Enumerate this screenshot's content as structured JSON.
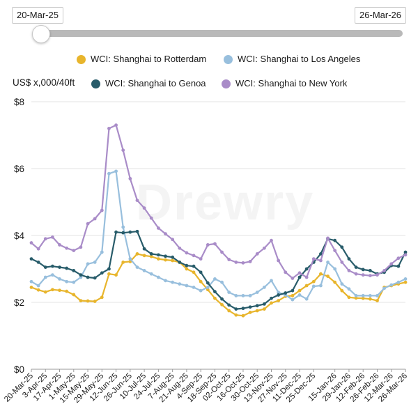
{
  "range_slider": {
    "start_label": "20-Mar-25",
    "end_label": "26-Mar-26"
  },
  "watermark": "Drewry",
  "chart_data": {
    "type": "line",
    "ylabel": "US$ x,000/40ft",
    "ylim": [
      0,
      8
    ],
    "yticks": [
      0,
      2,
      4,
      6,
      8
    ],
    "ytick_labels": [
      "$0",
      "$2",
      "$4",
      "$6",
      "$8"
    ],
    "grid": "horizontal",
    "legend_position": "top",
    "x": [
      "20-Mar-25",
      "27-Mar-25",
      "3-Apr-25",
      "10-Apr-25",
      "17-Apr-25",
      "24-Apr-25",
      "1-May-25",
      "8-May-25",
      "15-May-25",
      "22-May-25",
      "29-May-25",
      "5-Jun-25",
      "12-Jun-25",
      "19-Jun-25",
      "26-Jun-25",
      "3-Jul-25",
      "10-Jul-25",
      "17-Jul-25",
      "24-Jul-25",
      "31-Jul-25",
      "7-Aug-25",
      "14-Aug-25",
      "21-Aug-25",
      "28-Aug-25",
      "4-Sep-25",
      "11-Sep-25",
      "18-Sep-25",
      "25-Sep-25",
      "02-Oct-25",
      "09-Oct-25",
      "16-Oct-25",
      "23-Oct-25",
      "30-Oct-25",
      "06-Nov-25",
      "13-Nov-25",
      "20-Nov-25",
      "27-Nov-25",
      "04-Dec-25",
      "11-Dec-25",
      "18-Dec-25",
      "25-Dec-25",
      "01-Jan-26",
      "08-Jan-26",
      "15-Jan-26",
      "22-Jan-26",
      "29-Jan-26",
      "05-Feb-26",
      "12-Feb-26",
      "19-Feb-26",
      "26-Feb-26",
      "05-Mar-26",
      "12-Mar-26",
      "19-Mar-26",
      "26-Mar-26"
    ],
    "xtick_labels": [
      "20-Mar-25",
      "3-Apr-25",
      "17-Apr-25",
      "1-May-25",
      "15-May-25",
      "29-May-25",
      "12-Jun-25",
      "26-Jun-25",
      "10-Jul-25",
      "24-Jul-25",
      "7-Aug-25",
      "21-Aug-25",
      "4-Sep-25",
      "18-Sep-25",
      "02-Oct-25",
      "16-Oct-25",
      "30-Oct-25",
      "13-Nov-25",
      "27-Nov-25",
      "11-Dec-25",
      "25-Dec-25",
      "15-Jan-26",
      "29-Jan-26",
      "12-Feb-26",
      "26-Feb-26",
      "12-Mar-26",
      "26-Mar-26"
    ],
    "series": [
      {
        "name": "WCI: Shanghai to Rotterdam",
        "color": "#e8b52c",
        "values": [
          2.45,
          2.37,
          2.31,
          2.38,
          2.36,
          2.33,
          2.23,
          2.05,
          2.04,
          2.03,
          2.15,
          2.85,
          2.82,
          3.2,
          3.22,
          3.45,
          3.4,
          3.37,
          3.3,
          3.27,
          3.25,
          3.2,
          3.0,
          2.9,
          2.62,
          2.38,
          2.12,
          1.93,
          1.75,
          1.62,
          1.6,
          1.7,
          1.75,
          1.8,
          1.98,
          2.05,
          2.18,
          2.2,
          2.35,
          2.5,
          2.62,
          2.85,
          2.78,
          2.6,
          2.35,
          2.15,
          2.13,
          2.12,
          2.1,
          2.05,
          2.45,
          2.5,
          2.55,
          2.6
        ]
      },
      {
        "name": "WCI: Shanghai to Los Angeles",
        "color": "#98bfdd",
        "values": [
          2.62,
          2.5,
          2.75,
          2.82,
          2.7,
          2.62,
          2.6,
          2.75,
          3.15,
          3.2,
          3.5,
          5.85,
          5.92,
          4.25,
          3.3,
          3.05,
          2.95,
          2.85,
          2.75,
          2.65,
          2.6,
          2.55,
          2.5,
          2.45,
          2.35,
          2.45,
          2.7,
          2.6,
          2.3,
          2.2,
          2.2,
          2.2,
          2.3,
          2.45,
          2.65,
          2.3,
          2.22,
          2.08,
          2.22,
          2.1,
          2.48,
          2.5,
          3.2,
          3.0,
          2.55,
          2.4,
          2.2,
          2.2,
          2.2,
          2.2,
          2.42,
          2.52,
          2.6,
          2.7
        ]
      },
      {
        "name": "WCI: Shanghai to Genoa",
        "color": "#285c6a",
        "values": [
          3.3,
          3.2,
          3.05,
          3.08,
          3.05,
          3.02,
          2.95,
          2.82,
          2.75,
          2.73,
          2.88,
          3.0,
          4.1,
          4.08,
          4.1,
          4.12,
          3.6,
          3.45,
          3.42,
          3.38,
          3.35,
          3.2,
          3.1,
          3.08,
          2.9,
          2.58,
          2.32,
          2.1,
          1.92,
          1.8,
          1.82,
          1.86,
          1.9,
          1.95,
          2.12,
          2.22,
          2.28,
          2.35,
          2.75,
          3.0,
          3.2,
          3.45,
          3.9,
          3.85,
          3.65,
          3.3,
          3.05,
          2.98,
          2.95,
          2.85,
          2.9,
          3.1,
          3.08,
          3.5
        ]
      },
      {
        "name": "WCI: Shanghai to New York",
        "color": "#a98cc8",
        "values": [
          3.78,
          3.6,
          3.9,
          3.95,
          3.72,
          3.62,
          3.55,
          3.65,
          4.35,
          4.5,
          4.75,
          7.2,
          7.3,
          6.55,
          5.7,
          5.05,
          4.82,
          4.52,
          4.22,
          4.05,
          3.88,
          3.62,
          3.48,
          3.4,
          3.3,
          3.72,
          3.75,
          3.5,
          3.28,
          3.2,
          3.18,
          3.22,
          3.45,
          3.62,
          3.85,
          3.25,
          2.9,
          2.72,
          2.88,
          2.75,
          3.3,
          3.25,
          3.92,
          3.55,
          3.2,
          2.95,
          2.85,
          2.82,
          2.8,
          2.82,
          2.95,
          3.15,
          3.32,
          3.42
        ]
      }
    ]
  }
}
